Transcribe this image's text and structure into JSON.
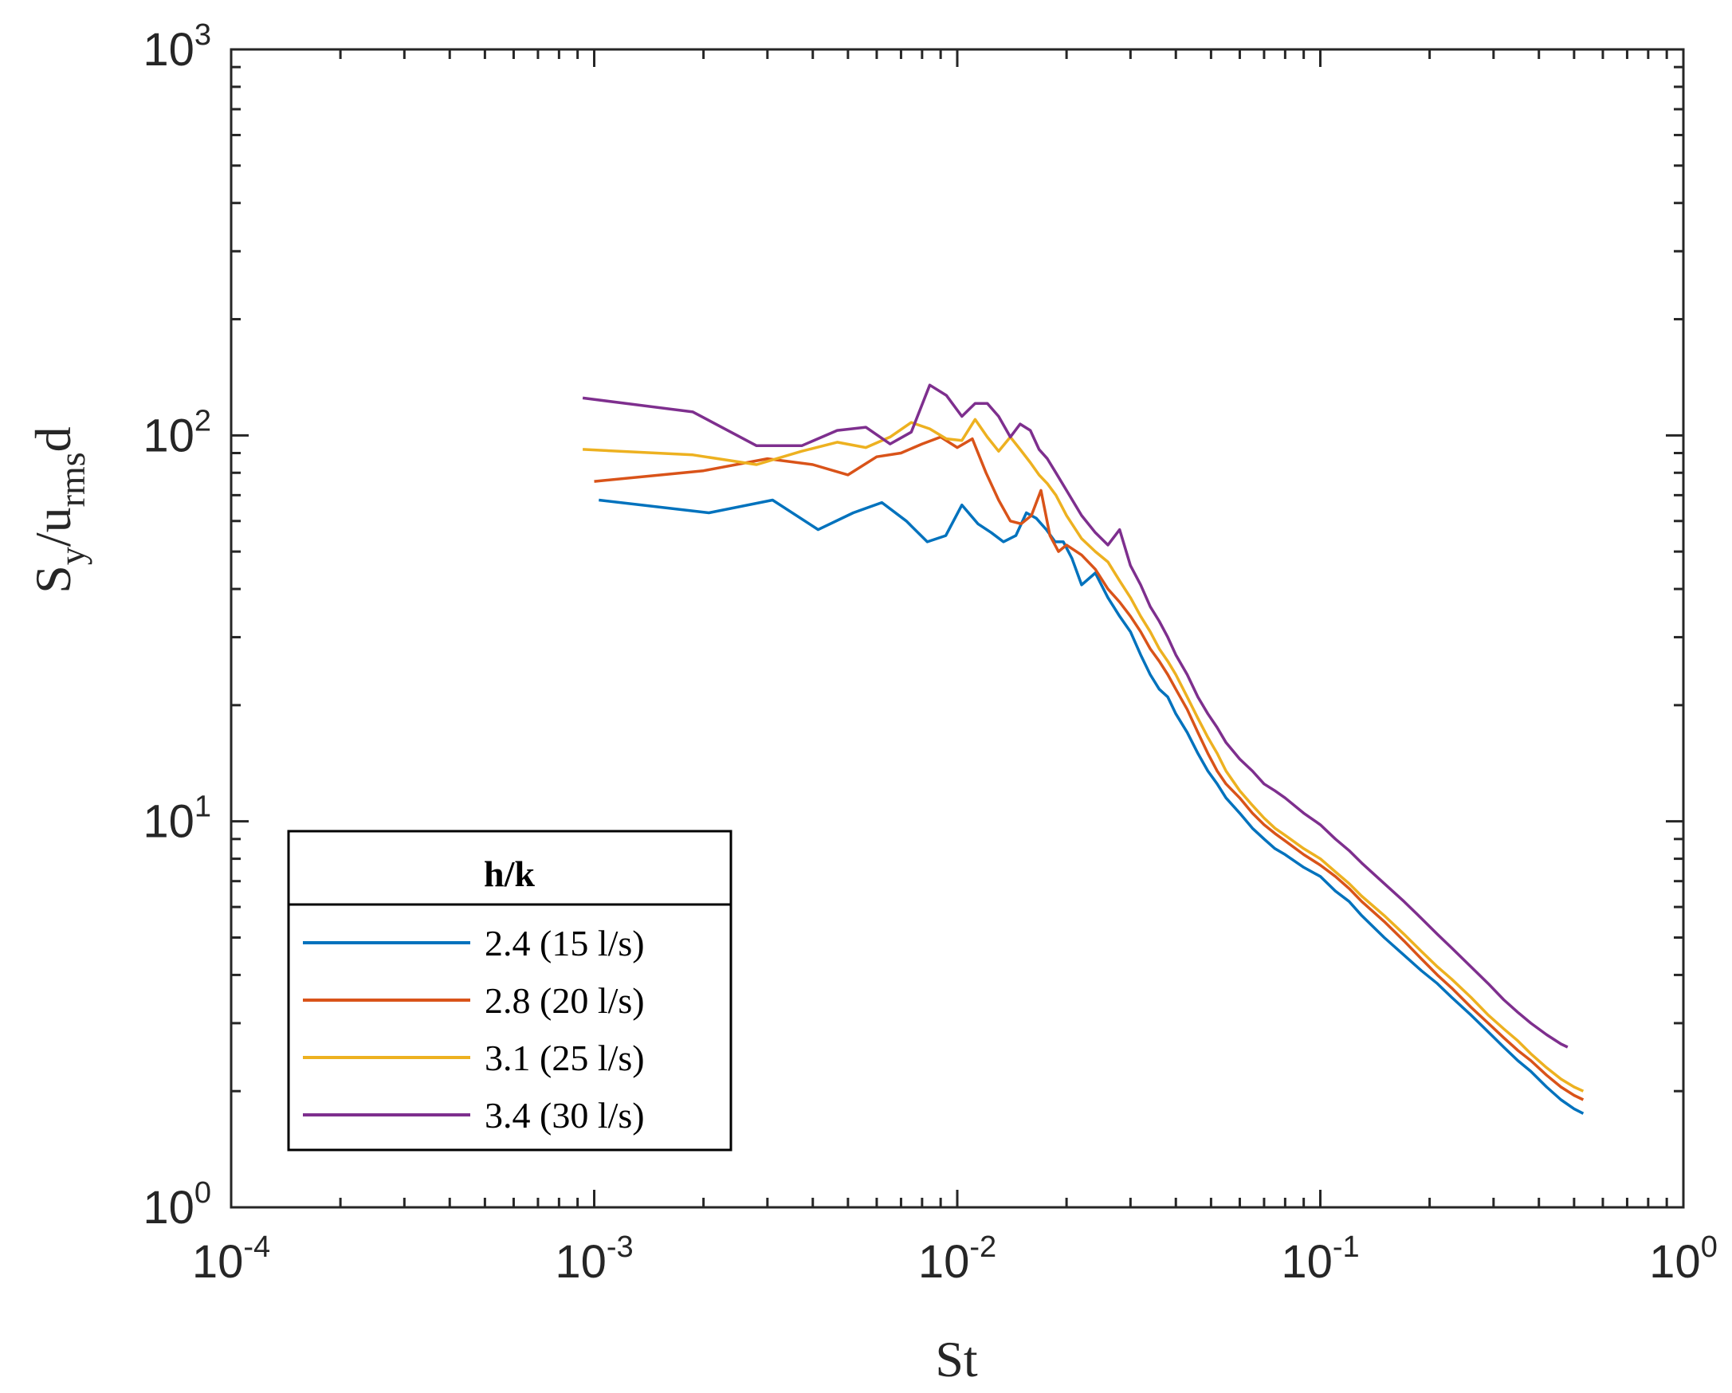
{
  "chart_data": {
    "type": "line",
    "title": "",
    "xscale": "log",
    "yscale": "log",
    "xlim": [
      0.0001,
      1
    ],
    "ylim": [
      1,
      1000
    ],
    "xlabel": "St",
    "ylabel": {
      "base": "S",
      "sub1": "y",
      "mid": "/u",
      "sub2": "rms",
      "end": "d"
    },
    "xticks": [
      {
        "base": "10",
        "exp": "-4",
        "value": 0.0001
      },
      {
        "base": "10",
        "exp": "-3",
        "value": 0.001
      },
      {
        "base": "10",
        "exp": "-2",
        "value": 0.01
      },
      {
        "base": "10",
        "exp": "-1",
        "value": 0.1
      },
      {
        "base": "10",
        "exp": "0",
        "value": 1
      }
    ],
    "yticks": [
      {
        "base": "10",
        "exp": "0",
        "value": 1
      },
      {
        "base": "10",
        "exp": "1",
        "value": 10
      },
      {
        "base": "10",
        "exp": "2",
        "value": 100
      },
      {
        "base": "10",
        "exp": "3",
        "value": 1000
      }
    ],
    "legend": {
      "title": "h/k",
      "location": "bottom-left"
    },
    "series": [
      {
        "name": "2.4 (15 l/s)",
        "color": "#0072BD",
        "x": [
          0.00103,
          0.00207,
          0.0031,
          0.00414,
          0.00517,
          0.0062,
          0.00724,
          0.00827,
          0.0093,
          0.0103,
          0.0114,
          0.0124,
          0.0134,
          0.0145,
          0.0155,
          0.0165,
          0.0176,
          0.0186,
          0.0196,
          0.0207,
          0.022,
          0.024,
          0.026,
          0.028,
          0.03,
          0.032,
          0.034,
          0.036,
          0.038,
          0.04,
          0.043,
          0.046,
          0.049,
          0.052,
          0.055,
          0.06,
          0.065,
          0.07,
          0.075,
          0.08,
          0.09,
          0.1,
          0.11,
          0.12,
          0.13,
          0.15,
          0.17,
          0.19,
          0.21,
          0.23,
          0.26,
          0.29,
          0.32,
          0.35,
          0.38,
          0.42,
          0.46,
          0.5,
          0.53
        ],
        "y": [
          68,
          63,
          68,
          57,
          63,
          67,
          60,
          53,
          55,
          66,
          59,
          56,
          53,
          55,
          63,
          61,
          57,
          53,
          53,
          48,
          41,
          44,
          38,
          34,
          31,
          27,
          24,
          22,
          21,
          19,
          17,
          15,
          13.5,
          12.5,
          11.5,
          10.5,
          9.6,
          9.0,
          8.5,
          8.2,
          7.6,
          7.2,
          6.6,
          6.2,
          5.7,
          5.0,
          4.5,
          4.1,
          3.8,
          3.5,
          3.15,
          2.85,
          2.6,
          2.4,
          2.25,
          2.05,
          1.9,
          1.8,
          1.75
        ]
      },
      {
        "name": "2.8 (20 l/s)",
        "color": "#D95319",
        "x": [
          0.001,
          0.002,
          0.003,
          0.004,
          0.005,
          0.006,
          0.007,
          0.008,
          0.009,
          0.01,
          0.011,
          0.012,
          0.013,
          0.014,
          0.015,
          0.016,
          0.017,
          0.018,
          0.019,
          0.02,
          0.022,
          0.024,
          0.026,
          0.028,
          0.03,
          0.032,
          0.034,
          0.036,
          0.038,
          0.04,
          0.043,
          0.046,
          0.049,
          0.052,
          0.055,
          0.06,
          0.065,
          0.07,
          0.075,
          0.08,
          0.09,
          0.1,
          0.11,
          0.12,
          0.13,
          0.15,
          0.17,
          0.19,
          0.21,
          0.23,
          0.26,
          0.29,
          0.32,
          0.35,
          0.38,
          0.42,
          0.46,
          0.5,
          0.53
        ],
        "y": [
          76,
          81,
          87,
          84,
          79,
          88,
          90,
          95,
          99,
          93,
          98,
          80,
          68,
          60,
          59,
          62,
          72,
          55,
          50,
          52,
          49,
          45,
          40,
          37,
          34,
          31,
          28,
          26,
          24,
          22,
          19.5,
          17,
          15,
          13.5,
          12.5,
          11.5,
          10.5,
          9.8,
          9.3,
          8.9,
          8.2,
          7.7,
          7.2,
          6.7,
          6.2,
          5.5,
          4.9,
          4.4,
          4.0,
          3.7,
          3.3,
          3.0,
          2.75,
          2.55,
          2.4,
          2.2,
          2.05,
          1.95,
          1.9
        ]
      },
      {
        "name": "3.1 (25 l/s)",
        "color": "#EDB120",
        "x": [
          0.00093,
          0.00187,
          0.0028,
          0.00373,
          0.00467,
          0.0056,
          0.00653,
          0.00747,
          0.0084,
          0.00933,
          0.0103,
          0.0112,
          0.0121,
          0.013,
          0.014,
          0.0149,
          0.0159,
          0.0168,
          0.0177,
          0.0187,
          0.02,
          0.022,
          0.024,
          0.026,
          0.028,
          0.03,
          0.032,
          0.034,
          0.036,
          0.038,
          0.04,
          0.043,
          0.046,
          0.049,
          0.052,
          0.055,
          0.06,
          0.065,
          0.07,
          0.075,
          0.08,
          0.09,
          0.1,
          0.11,
          0.12,
          0.13,
          0.15,
          0.17,
          0.19,
          0.21,
          0.23,
          0.26,
          0.29,
          0.32,
          0.35,
          0.38,
          0.42,
          0.46,
          0.5,
          0.53
        ],
        "y": [
          92,
          89,
          84,
          91,
          96,
          93,
          99,
          108,
          104,
          98,
          97,
          110,
          99,
          91,
          99,
          92,
          85,
          79,
          75,
          70,
          62,
          54,
          50,
          47,
          42,
          38,
          34,
          31,
          28,
          26,
          24,
          21,
          18.5,
          16.5,
          15,
          13.5,
          12,
          11,
          10.2,
          9.6,
          9.2,
          8.5,
          8.0,
          7.4,
          6.9,
          6.4,
          5.7,
          5.1,
          4.6,
          4.2,
          3.9,
          3.5,
          3.15,
          2.9,
          2.7,
          2.5,
          2.3,
          2.15,
          2.05,
          2.0
        ]
      },
      {
        "name": "3.4 (30 l/s)",
        "color": "#7E2F8E",
        "x": [
          0.00093,
          0.00187,
          0.0028,
          0.00373,
          0.00467,
          0.0056,
          0.00653,
          0.00747,
          0.0084,
          0.00933,
          0.0103,
          0.0112,
          0.0121,
          0.013,
          0.014,
          0.0149,
          0.0159,
          0.0168,
          0.0177,
          0.0187,
          0.02,
          0.022,
          0.024,
          0.026,
          0.028,
          0.03,
          0.032,
          0.034,
          0.036,
          0.038,
          0.04,
          0.043,
          0.046,
          0.049,
          0.052,
          0.055,
          0.06,
          0.065,
          0.07,
          0.075,
          0.08,
          0.09,
          0.1,
          0.11,
          0.12,
          0.13,
          0.15,
          0.17,
          0.19,
          0.21,
          0.23,
          0.26,
          0.29,
          0.32,
          0.35,
          0.38,
          0.42,
          0.46,
          0.48
        ],
        "y": [
          125,
          115,
          94,
          94,
          103,
          105,
          95,
          102,
          135,
          127,
          112,
          121,
          121,
          112,
          99,
          107,
          103,
          92,
          87,
          80,
          72,
          62,
          56,
          52,
          57,
          46,
          41,
          36,
          33,
          30,
          27,
          24,
          21,
          19,
          17.5,
          16,
          14.5,
          13.5,
          12.5,
          12,
          11.5,
          10.5,
          9.8,
          9.0,
          8.4,
          7.8,
          6.9,
          6.2,
          5.6,
          5.1,
          4.7,
          4.2,
          3.8,
          3.45,
          3.2,
          3.0,
          2.8,
          2.65,
          2.6
        ]
      }
    ]
  }
}
